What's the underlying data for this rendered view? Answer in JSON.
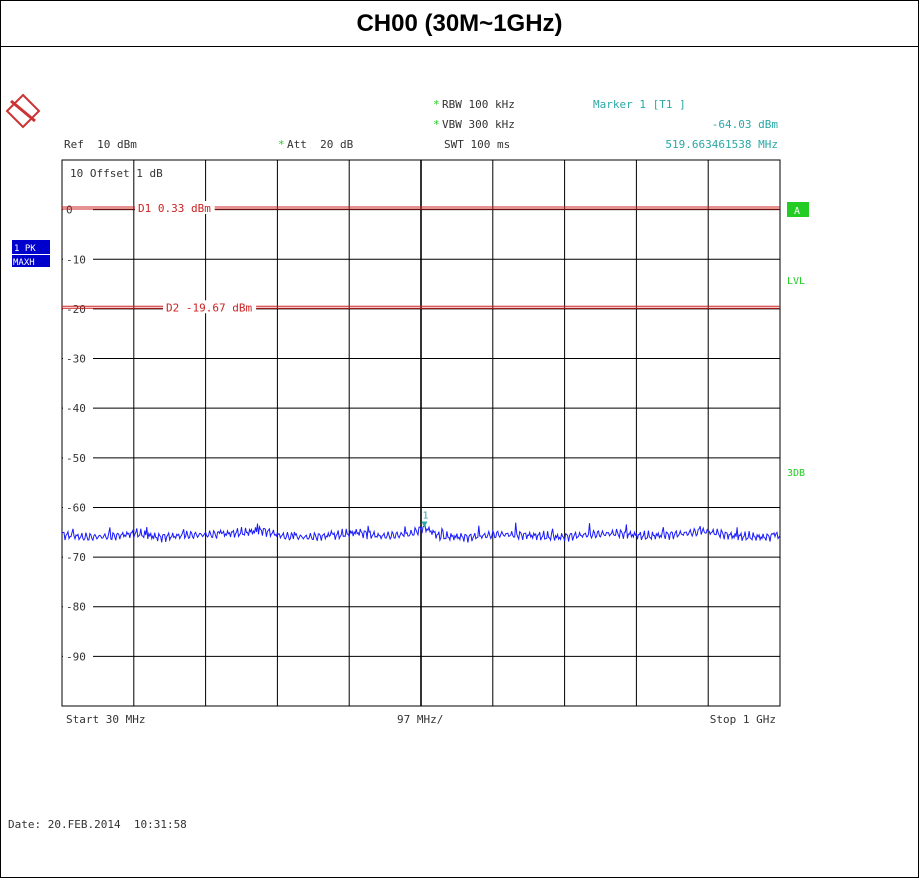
{
  "title": "CH00 (30M~1GHz)",
  "header": {
    "ref": "Ref  10 dBm",
    "att": "Att  20 dB",
    "rbw": "RBW 100 kHz",
    "vbw": "VBW 300 kHz",
    "swt": "SWT 100 ms",
    "star": "*",
    "marker_label": "Marker 1 [T1 ]",
    "marker_level": "-64.03 dBm",
    "marker_freq": "519.663461538 MHz",
    "offset": "10 Offset  1 dB"
  },
  "side_labels": {
    "trace_pk": "1 PK",
    "trace_maxh": "MAXH",
    "a": "A",
    "lvl": "LVL",
    "3db": "3DB"
  },
  "lines": {
    "d1": "D1 0.33 dBm",
    "d2": "D2 -19.67 dBm"
  },
  "footer": {
    "start": "Start 30 MHz",
    "span_div": "97 MHz/",
    "stop": "Stop 1 GHz",
    "date": "Date: 20.FEB.2014  10:31:58"
  },
  "colors": {
    "grid": "#000000",
    "trace": "#1a1aff",
    "limit_line": "#cc2222",
    "marker_text": "#2aa7a7",
    "indicator_green": "#22cc22",
    "trace_badge": "#0000cc"
  },
  "chart_data": {
    "type": "line",
    "xlabel": "",
    "ylabel": "",
    "x_range_mhz": [
      30,
      1000
    ],
    "ylim": [
      -100,
      10
    ],
    "y_ticks": [
      "0",
      "-10",
      "-20",
      "-30",
      "-40",
      "-50",
      "-60",
      "-70",
      "-80",
      "-90"
    ],
    "grid": true,
    "display_lines": [
      {
        "name": "D1",
        "level_dbm": 0.33
      },
      {
        "name": "D2",
        "level_dbm": -19.67
      }
    ],
    "marker": {
      "name": "1",
      "x_mhz": 519.663461538,
      "y_dbm": -64.03
    },
    "series": [
      {
        "name": "1 PK MAXH",
        "x_mhz": [
          30,
          60,
          100,
          130,
          160,
          200,
          240,
          280,
          300,
          330,
          360,
          400,
          430,
          460,
          500,
          519.66,
          540,
          580,
          620,
          660,
          700,
          740,
          780,
          820,
          860,
          900,
          940,
          980,
          1000
        ],
        "y_dbm": [
          -65.5,
          -66,
          -65.8,
          -65.2,
          -66,
          -65.6,
          -65.4,
          -65,
          -64.6,
          -65.8,
          -66,
          -65.6,
          -65,
          -65.8,
          -65.4,
          -64.03,
          -65.8,
          -66,
          -65.4,
          -65.6,
          -66,
          -65.5,
          -65.2,
          -65.8,
          -65.4,
          -64.8,
          -65.8,
          -66,
          -65.6
        ]
      }
    ]
  }
}
